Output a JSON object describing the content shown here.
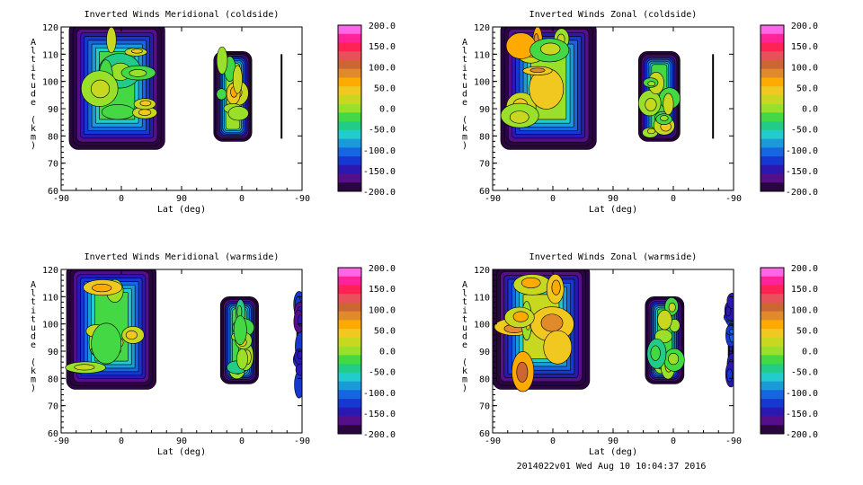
{
  "chart_data": [
    {
      "type": "heatmap",
      "title": "Inverted Winds Meridional (coldside)",
      "xlabel": "Lat (deg)",
      "ylabel": "Altitude (km)",
      "x_ticks": [
        "-90",
        "0",
        "90",
        "0",
        "-90"
      ],
      "y_ticks": [
        120,
        110,
        100,
        90,
        80,
        70,
        60
      ],
      "ylim": [
        60,
        120
      ],
      "blobs": [
        {
          "x": [
            -78,
            65
          ],
          "y": [
            75,
            122
          ],
          "base": -20,
          "amp": 35,
          "seed": 1
        },
        {
          "x": [
            138,
            195
          ],
          "y": [
            78,
            111
          ],
          "base": -5,
          "amp": 30,
          "seed": 2
        },
        {
          "x": [
            238,
            240
          ],
          "y": [
            79,
            110
          ],
          "base": -200,
          "amp": 0,
          "seed": 3
        }
      ]
    },
    {
      "type": "heatmap",
      "title": "Inverted Winds Zonal (coldside)",
      "xlabel": "Lat (deg)",
      "ylabel": "Altitude (km)",
      "x_ticks": [
        "-90",
        "0",
        "90",
        "0",
        "-90"
      ],
      "y_ticks": [
        120,
        110,
        100,
        90,
        80,
        70,
        60
      ],
      "ylim": [
        60,
        120
      ],
      "blobs": [
        {
          "x": [
            -78,
            65
          ],
          "y": [
            75,
            122
          ],
          "base": 10,
          "amp": 45,
          "seed": 4
        },
        {
          "x": [
            128,
            190
          ],
          "y": [
            78,
            111
          ],
          "base": -20,
          "amp": 30,
          "seed": 5
        },
        {
          "x": [
            238,
            240
          ],
          "y": [
            79,
            110
          ],
          "base": -200,
          "amp": 0,
          "seed": 6
        }
      ]
    },
    {
      "type": "heatmap",
      "title": "Inverted Winds Meridional (warmside)",
      "xlabel": "Lat (deg)",
      "ylabel": "Altitude (km)",
      "x_ticks": [
        "-90",
        "0",
        "90",
        "0",
        "-90"
      ],
      "y_ticks": [
        120,
        110,
        100,
        90,
        80,
        70,
        60
      ],
      "ylim": [
        60,
        120
      ],
      "blobs": [
        {
          "x": [
            -82,
            52
          ],
          "y": [
            76,
            122
          ],
          "base": -15,
          "amp": 40,
          "seed": 7
        },
        {
          "x": [
            148,
            205
          ],
          "y": [
            78,
            110
          ],
          "base": -25,
          "amp": 35,
          "seed": 8
        },
        {
          "x": [
            262,
            270
          ],
          "y": [
            77,
            110
          ],
          "base": -150,
          "amp": 20,
          "seed": 9
        }
      ]
    },
    {
      "type": "heatmap",
      "title": "Inverted Winds Zonal (warmside)",
      "xlabel": "Lat (deg)",
      "ylabel": "Altitude (km)",
      "x_ticks": [
        "-90",
        "0",
        "90",
        "0",
        "-90"
      ],
      "y_ticks": [
        120,
        110,
        100,
        90,
        80,
        70,
        60
      ],
      "ylim": [
        60,
        120
      ],
      "blobs": [
        {
          "x": [
            -90,
            55
          ],
          "y": [
            76,
            122
          ],
          "base": 15,
          "amp": 45,
          "seed": 10
        },
        {
          "x": [
            138,
            196
          ],
          "y": [
            78,
            110
          ],
          "base": -30,
          "amp": 35,
          "seed": 11
        },
        {
          "x": [
            262,
            270
          ],
          "y": [
            77,
            110
          ],
          "base": -150,
          "amp": 20,
          "seed": 12
        }
      ]
    }
  ],
  "colorbar": {
    "labels": [
      "200.0",
      "150.0",
      "100.0",
      "50.0",
      "0.0",
      "-50.0",
      "-100.0",
      "-150.0",
      "-200.0"
    ],
    "colors": [
      "#ff66e6",
      "#ff2299",
      "#ff2255",
      "#e8505a",
      "#cc6633",
      "#e08a2b",
      "#ffaa00",
      "#f0c820",
      "#c8d820",
      "#9ae02a",
      "#44d844",
      "#22cc88",
      "#22cccc",
      "#1a9ad8",
      "#1566e0",
      "#1638d0",
      "#2a18b0",
      "#560e8a",
      "#2a0640"
    ]
  },
  "footer": "2014022v01 Wed Aug 10 10:04:37 2016"
}
